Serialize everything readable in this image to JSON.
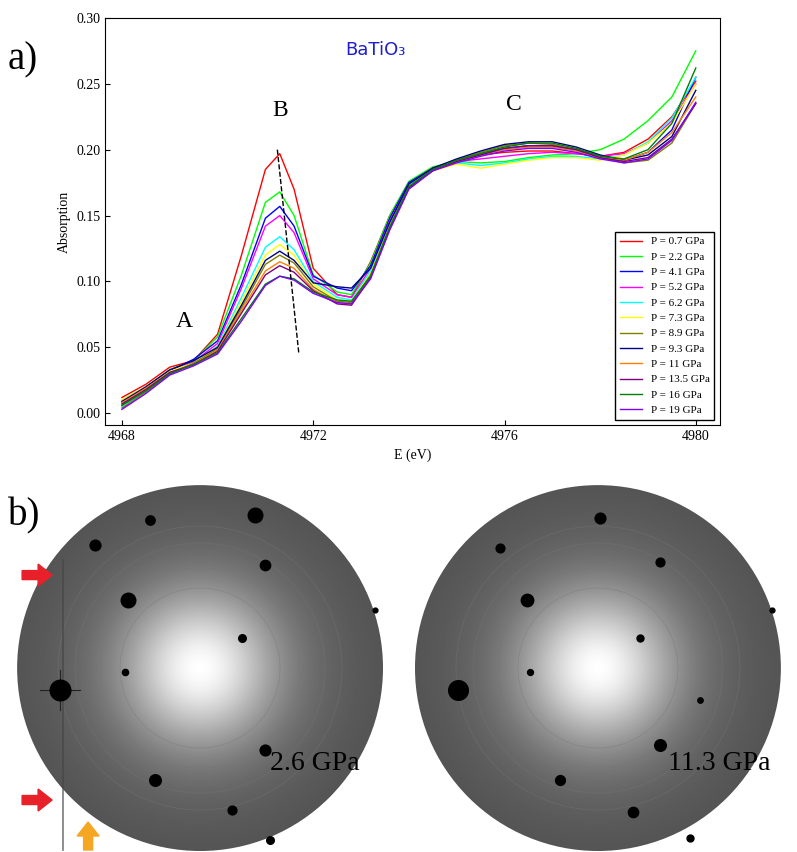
{
  "chart_data": {
    "type": "line",
    "title": "BaTiO₃",
    "x_label": "E (eV)",
    "y_label": "Absorption",
    "x": [
      4968,
      4968.5,
      4969,
      4969.5,
      4970,
      4970.5,
      4971,
      4971.3,
      4971.6,
      4972,
      4972.5,
      4972.8,
      4973.2,
      4973.6,
      4974,
      4974.5,
      4975,
      4975.5,
      4976,
      4976.5,
      4977,
      4977.5,
      4978,
      4978.5,
      4979,
      4979.5,
      4980
    ],
    "series": [
      {
        "name": "P = 0.7 GPa",
        "color": "#FF0000",
        "values": [
          0.012,
          0.022,
          0.035,
          0.04,
          0.06,
          0.12,
          0.185,
          0.197,
          0.17,
          0.11,
          0.09,
          0.088,
          0.115,
          0.15,
          0.175,
          0.186,
          0.192,
          0.196,
          0.198,
          0.199,
          0.199,
          0.197,
          0.195,
          0.198,
          0.208,
          0.225,
          0.252
        ]
      },
      {
        "name": "P = 2.2 GPa",
        "color": "#00FF00",
        "values": [
          0.01,
          0.02,
          0.033,
          0.04,
          0.058,
          0.105,
          0.16,
          0.168,
          0.15,
          0.105,
          0.092,
          0.09,
          0.114,
          0.15,
          0.176,
          0.187,
          0.191,
          0.19,
          0.191,
          0.194,
          0.196,
          0.197,
          0.2,
          0.208,
          0.222,
          0.24,
          0.275
        ]
      },
      {
        "name": "P = 4.1 GPa",
        "color": "#0000FF",
        "values": [
          0.008,
          0.02,
          0.032,
          0.041,
          0.055,
          0.098,
          0.148,
          0.157,
          0.142,
          0.104,
          0.095,
          0.093,
          0.112,
          0.148,
          0.175,
          0.186,
          0.192,
          0.197,
          0.201,
          0.203,
          0.203,
          0.2,
          0.195,
          0.192,
          0.198,
          0.215,
          0.255
        ]
      },
      {
        "name": "P = 5.2 GPa",
        "color": "#FF00FF",
        "values": [
          0.006,
          0.018,
          0.031,
          0.039,
          0.053,
          0.095,
          0.142,
          0.15,
          0.137,
          0.102,
          0.09,
          0.088,
          0.11,
          0.146,
          0.174,
          0.186,
          0.191,
          0.193,
          0.195,
          0.197,
          0.198,
          0.197,
          0.195,
          0.197,
          0.205,
          0.222,
          0.25
        ]
      },
      {
        "name": "P = 6.2 GPa",
        "color": "#00FFFF",
        "values": [
          0.005,
          0.017,
          0.03,
          0.038,
          0.051,
          0.088,
          0.126,
          0.134,
          0.124,
          0.1,
          0.088,
          0.086,
          0.108,
          0.144,
          0.173,
          0.185,
          0.19,
          0.188,
          0.19,
          0.193,
          0.195,
          0.195,
          0.193,
          0.196,
          0.206,
          0.224,
          0.255
        ]
      },
      {
        "name": "P = 7.3 GPa",
        "color": "#FFFF00",
        "values": [
          0.01,
          0.02,
          0.032,
          0.038,
          0.05,
          0.085,
          0.12,
          0.128,
          0.12,
          0.098,
          0.086,
          0.085,
          0.106,
          0.142,
          0.172,
          0.184,
          0.189,
          0.186,
          0.189,
          0.192,
          0.194,
          0.194,
          0.192,
          0.196,
          0.205,
          0.22,
          0.25
        ]
      },
      {
        "name": "P = 8.9 GPa",
        "color": "#808000",
        "values": [
          0.004,
          0.016,
          0.03,
          0.038,
          0.049,
          0.08,
          0.113,
          0.12,
          0.114,
          0.096,
          0.085,
          0.084,
          0.105,
          0.142,
          0.172,
          0.185,
          0.192,
          0.198,
          0.203,
          0.205,
          0.204,
          0.2,
          0.194,
          0.19,
          0.192,
          0.205,
          0.235
        ]
      },
      {
        "name": "P = 9.3 GPa",
        "color": "#000080",
        "values": [
          0.009,
          0.02,
          0.033,
          0.04,
          0.05,
          0.082,
          0.116,
          0.123,
          0.116,
          0.099,
          0.096,
          0.095,
          0.11,
          0.145,
          0.174,
          0.186,
          0.193,
          0.199,
          0.204,
          0.206,
          0.206,
          0.202,
          0.196,
          0.192,
          0.196,
          0.21,
          0.245
        ]
      },
      {
        "name": "P = 11 GPa",
        "color": "#FF8000",
        "values": [
          0.008,
          0.019,
          0.031,
          0.037,
          0.048,
          0.078,
          0.108,
          0.115,
          0.11,
          0.094,
          0.084,
          0.083,
          0.104,
          0.14,
          0.171,
          0.184,
          0.191,
          0.196,
          0.2,
          0.202,
          0.202,
          0.199,
          0.194,
          0.192,
          0.198,
          0.213,
          0.24
        ]
      },
      {
        "name": "P = 13.5 GPa",
        "color": "#800080",
        "values": [
          0.007,
          0.018,
          0.031,
          0.037,
          0.047,
          0.076,
          0.105,
          0.112,
          0.107,
          0.093,
          0.083,
          0.082,
          0.103,
          0.14,
          0.171,
          0.184,
          0.191,
          0.196,
          0.201,
          0.203,
          0.203,
          0.2,
          0.194,
          0.191,
          0.194,
          0.208,
          0.235
        ]
      },
      {
        "name": "P = 16 GPa",
        "color": "#008000",
        "values": [
          0.006,
          0.017,
          0.03,
          0.037,
          0.046,
          0.072,
          0.098,
          0.104,
          0.102,
          0.092,
          0.086,
          0.085,
          0.104,
          0.141,
          0.172,
          0.185,
          0.192,
          0.197,
          0.202,
          0.205,
          0.205,
          0.201,
          0.195,
          0.193,
          0.2,
          0.22,
          0.262
        ]
      },
      {
        "name": "P = 19 GPa",
        "color": "#8000FF",
        "values": [
          0.003,
          0.015,
          0.029,
          0.036,
          0.045,
          0.07,
          0.097,
          0.104,
          0.101,
          0.091,
          0.084,
          0.083,
          0.102,
          0.139,
          0.17,
          0.184,
          0.19,
          0.195,
          0.199,
          0.201,
          0.201,
          0.198,
          0.193,
          0.19,
          0.193,
          0.207,
          0.236
        ]
      }
    ],
    "xlim": [
      4967.65,
      4980.5
    ],
    "xticks": [
      4968,
      4972,
      4976,
      4980
    ],
    "ylim": [
      -0.009,
      0.3
    ],
    "yticks": [
      {
        "value": 0,
        "label": "0.00"
      },
      {
        "value": 0.05,
        "label": "0.05"
      },
      {
        "value": 0.1,
        "label": "0.10"
      },
      {
        "value": 0.15,
        "label": "0.15"
      },
      {
        "value": 0.2,
        "label": "0.20"
      },
      {
        "value": 0.25,
        "label": "0.25"
      },
      {
        "value": 0.3,
        "label": "0.30"
      }
    ],
    "grid": false,
    "legend": "lower right",
    "annotations": [
      {
        "text": "A",
        "x": 4969.3,
        "y": 0.062
      },
      {
        "text": "B",
        "x": 4971.3,
        "y": 0.222
      },
      {
        "text": "C",
        "x": 4976.2,
        "y": 0.226
      }
    ],
    "lines": [
      {
        "x": [
          4971.25,
          4971.7
        ],
        "y": [
          0.2,
          0.045
        ],
        "line_style": "dashed",
        "color": "#000000"
      }
    ]
  },
  "panel_labels": [
    "a)",
    "b)"
  ],
  "images": [
    {
      "label": "2.6 GPa"
    },
    {
      "label": "11.3 GPa"
    }
  ]
}
